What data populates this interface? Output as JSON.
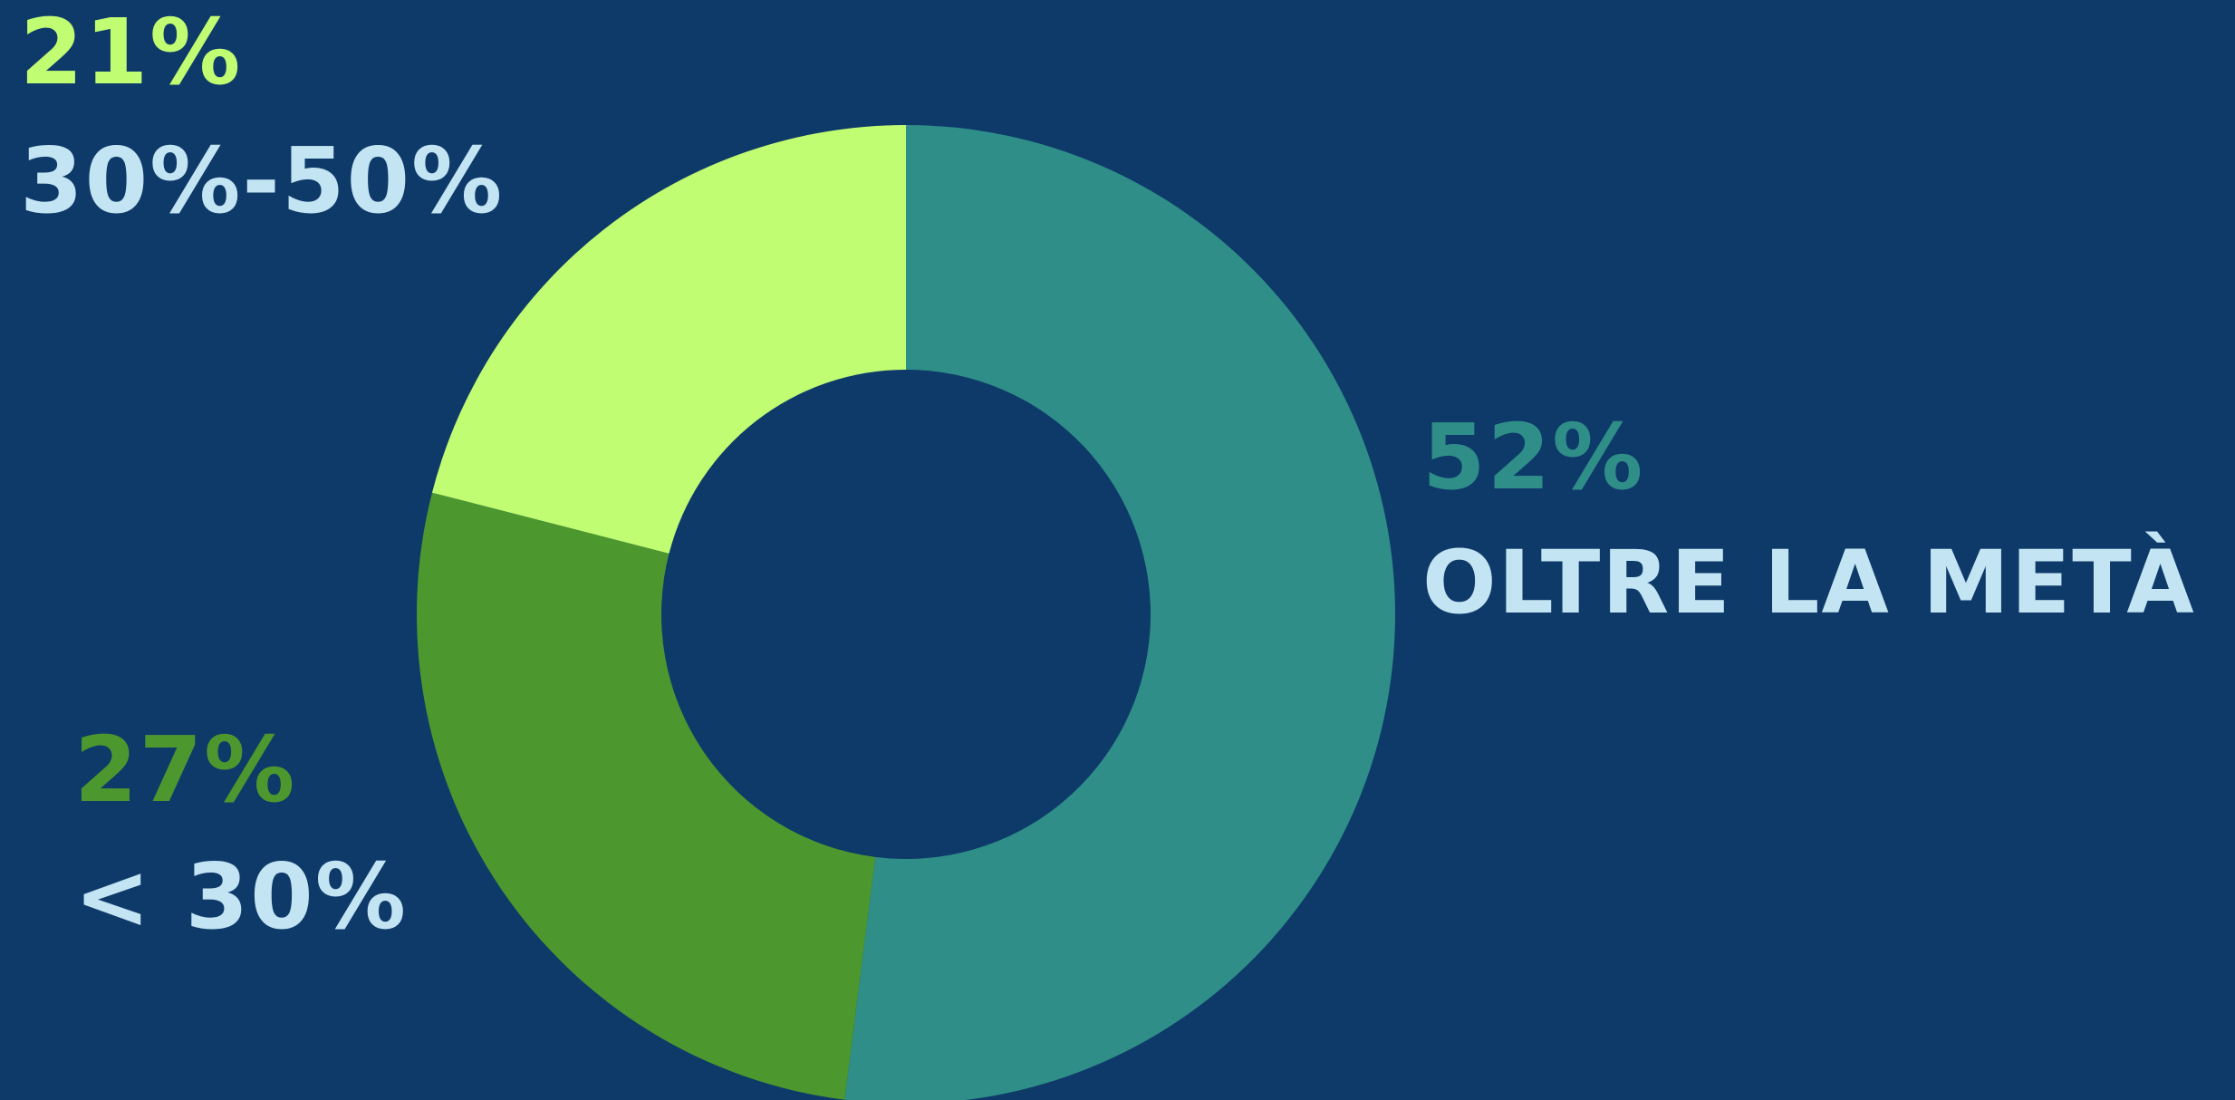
{
  "background": "#0e3a6a",
  "label_color": "#c3e4f2",
  "chart_data": {
    "type": "pie",
    "donut": true,
    "start_angle_deg": 0,
    "direction": "clockwise",
    "slices": [
      {
        "category": "OLTRE LA METÀ",
        "value": 52,
        "value_label": "52%",
        "color": "#2f8e88"
      },
      {
        "category": "< 30%",
        "value": 27,
        "value_label": "27%",
        "color": "#4c982e"
      },
      {
        "category": "30%-50%",
        "value": 21,
        "value_label": "21%",
        "color": "#c1fd72"
      }
    ]
  }
}
